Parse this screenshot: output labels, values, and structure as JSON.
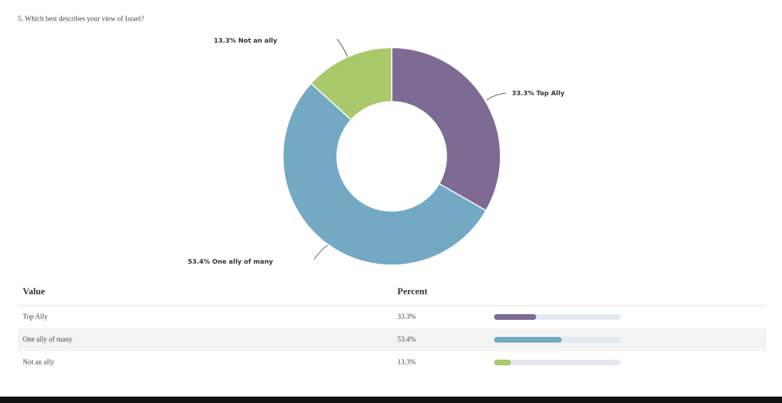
{
  "chart_data": {
    "type": "donut",
    "title": "5. Which best describes your view of Israel?",
    "categories": [
      "Top Ally",
      "One ally of many",
      "Not an ally"
    ],
    "values": [
      33.3,
      53.4,
      13.3
    ],
    "value_labels": [
      "33.3%",
      "53.4%",
      "13.3%"
    ],
    "colors": [
      "#7e6b94",
      "#74a9c4",
      "#a9c96a"
    ]
  },
  "table_headers": [
    "Value",
    "Percent"
  ]
}
